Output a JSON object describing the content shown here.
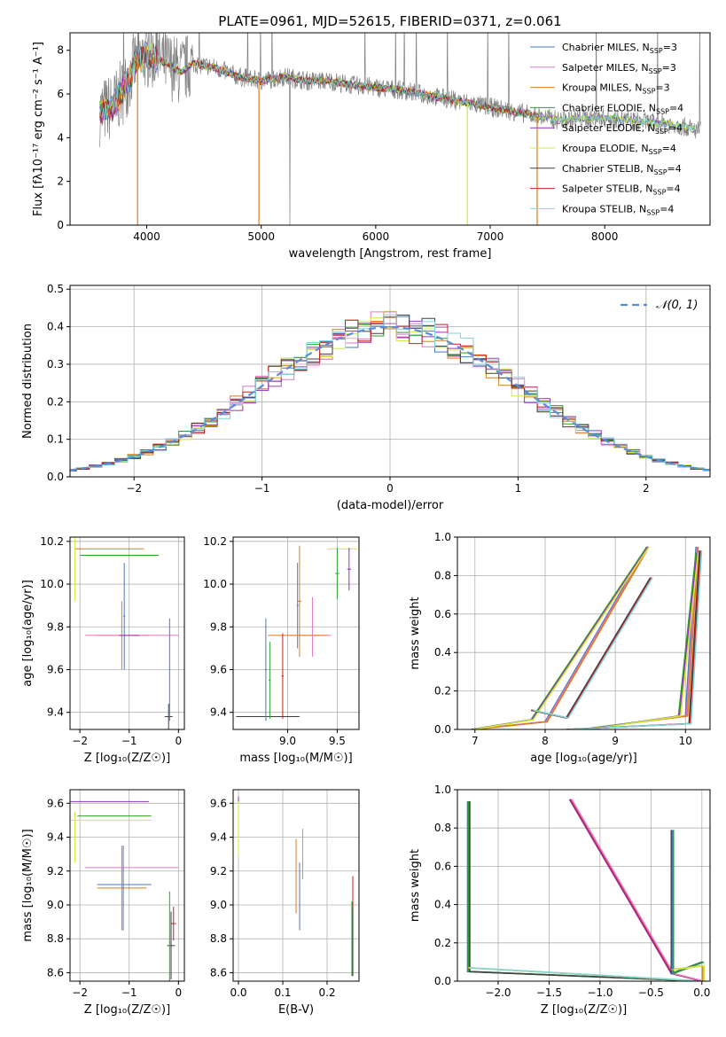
{
  "chart_data": [
    {
      "type": "line",
      "title": "PLATE=0961, MJD=52615, FIBERID=0371, z=0.061",
      "xlabel": "wavelength [Angstrom, rest frame]",
      "ylabel": "Flux [fλ10⁻¹⁷ erg cm⁻² s⁻¹ A⁻¹]",
      "xlim": [
        3330,
        8920
      ],
      "ylim": [
        0,
        8.8
      ],
      "xticks": [
        4000,
        5000,
        6000,
        7000,
        8000
      ],
      "yticks": [
        0,
        2,
        4,
        6,
        8
      ],
      "grid": false,
      "legend_position": "top-right",
      "data_envelope": {
        "x": [
          3600,
          3700,
          3800,
          3900,
          4000,
          4100,
          4200,
          4300,
          4400,
          4600,
          4800,
          5000,
          5200,
          5400,
          5600,
          5800,
          6000,
          6200,
          6400,
          6600,
          6800,
          7000,
          7200,
          7400,
          7600,
          7800,
          8000,
          8200,
          8400,
          8600,
          8700,
          8840
        ],
        "y": [
          5.2,
          5.4,
          6.2,
          7.4,
          7.8,
          7.6,
          7.3,
          7.0,
          7.4,
          7.2,
          6.8,
          6.6,
          6.8,
          6.6,
          6.6,
          6.4,
          6.3,
          6.2,
          6.0,
          5.8,
          5.6,
          5.4,
          5.2,
          5.0,
          4.8,
          4.9,
          4.9,
          4.8,
          4.7,
          4.6,
          4.5,
          4.3
        ]
      },
      "series": [
        {
          "name": "Chabrier MILES, N_SSP=3",
          "color": "#4a78c4"
        },
        {
          "name": "Salpeter MILES, N_SSP=3",
          "color": "#e377c2"
        },
        {
          "name": "Kroupa MILES, N_SSP=3",
          "color": "#e07b1a"
        },
        {
          "name": "Chabrier ELODIE, N_SSP=4",
          "color": "#2ca02c"
        },
        {
          "name": "Salpeter ELODIE, N_SSP=4",
          "color": "#9432c4"
        },
        {
          "name": "Kroupa ELODIE, N_SSP=4",
          "color": "#d4e83a"
        },
        {
          "name": "Chabrier STELIB, N_SSP=4",
          "color": "#404040"
        },
        {
          "name": "Salpeter STELIB, N_SSP=4",
          "color": "#c62020"
        },
        {
          "name": "Kroupa STELIB, N_SSP=4",
          "color": "#7fd6d8"
        }
      ],
      "legend_rows": [
        [
          "Chabrier MILES, N",
          "SSP",
          "=3"
        ],
        [
          "Salpeter MILES, N",
          "SSP",
          "=3"
        ],
        [
          "Kroupa MILES, N",
          "SSP",
          "=3"
        ],
        [
          "Chabrier ELODIE, N",
          "SSP",
          "=4"
        ],
        [
          "Salpeter ELODIE, N",
          "SSP",
          "=4"
        ],
        [
          "Kroupa ELODIE, N",
          "SSP",
          "=4"
        ],
        [
          "Chabrier STELIB, N",
          "SSP",
          "=4"
        ],
        [
          "Salpeter STELIB, N",
          "SSP",
          "=4"
        ],
        [
          "Kroupa STELIB, N",
          "SSP",
          "=4"
        ]
      ]
    },
    {
      "type": "line",
      "xlabel": "(data-model)/error",
      "ylabel": "Normed distribution",
      "xlim": [
        -2.5,
        2.5
      ],
      "ylim": [
        0,
        0.51
      ],
      "xticks": [
        -2,
        -1,
        0,
        1,
        2
      ],
      "yticks": [
        0.0,
        0.1,
        0.2,
        0.3,
        0.4,
        0.5
      ],
      "grid": true,
      "legend_position": "top-right",
      "reference_curve": {
        "name": "𝒩(0, 1)",
        "mean": 0,
        "sigma": 1,
        "color": "#5b8bd8"
      },
      "histogram_bin_width": 0.1
    },
    {
      "type": "scatter",
      "xlabel": "Z [log₁₀(Z/Z☉)]",
      "ylabel": "age  [log₁₀(age/yr)]",
      "xlim": [
        -2.2,
        0.12
      ],
      "ylim": [
        9.32,
        10.22
      ],
      "xticks": [
        -2,
        -1,
        0
      ],
      "yticks": [
        9.4,
        9.6,
        9.8,
        10.0,
        10.2
      ],
      "grid": true
    },
    {
      "type": "scatter",
      "xlabel": "mass [log₁₀(M/M☉)]",
      "ylabel": "",
      "xlim": [
        8.45,
        9.72
      ],
      "ylim": [
        9.32,
        10.22
      ],
      "xticks": [
        9.0,
        9.5
      ],
      "yticks": [
        9.4,
        9.6,
        9.8,
        10.0,
        10.2
      ],
      "grid": true
    },
    {
      "type": "line",
      "xlabel": "age  [log₁₀(age/yr)]",
      "ylabel": "mass weight",
      "xlim": [
        6.75,
        10.35
      ],
      "ylim": [
        0,
        1.0
      ],
      "xticks": [
        7,
        8,
        9,
        10
      ],
      "yticks": [
        0.0,
        0.2,
        0.4,
        0.6,
        0.8,
        1.0
      ],
      "grid": true
    },
    {
      "type": "scatter",
      "xlabel": "Z [log₁₀(Z/Z☉)]",
      "ylabel": "mass [log₁₀(M/M☉)]",
      "xlim": [
        -2.2,
        0.12
      ],
      "ylim": [
        8.55,
        9.68
      ],
      "xticks": [
        -2,
        -1,
        0
      ],
      "yticks": [
        8.6,
        8.8,
        9.0,
        9.2,
        9.4,
        9.6
      ],
      "grid": true
    },
    {
      "type": "scatter",
      "xlabel": "E(B-V)",
      "ylabel": "",
      "xlim": [
        -0.012,
        0.272
      ],
      "ylim": [
        8.55,
        9.68
      ],
      "xticks": [
        0.0,
        0.1,
        0.2
      ],
      "yticks": [
        8.6,
        8.8,
        9.0,
        9.2,
        9.4,
        9.6
      ],
      "grid": true
    },
    {
      "type": "line",
      "xlabel": "Z [log₁₀(Z/Z☉)]",
      "ylabel": "mass weight",
      "xlim": [
        -2.4,
        0.08
      ],
      "ylim": [
        0,
        1.0
      ],
      "xticks": [
        -2.0,
        -1.5,
        -1.0,
        -0.5,
        0.0
      ],
      "yticks": [
        0.0,
        0.2,
        0.4,
        0.6,
        0.8,
        1.0
      ],
      "grid": true
    }
  ]
}
